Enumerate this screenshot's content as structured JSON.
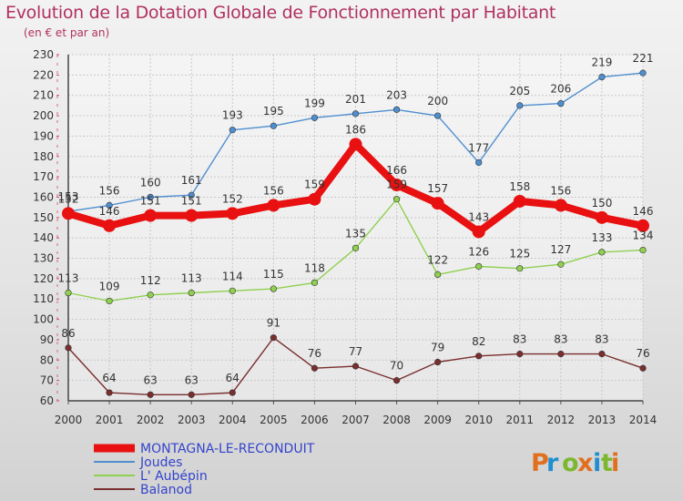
{
  "header": {
    "title": "Evolution de la Dotation Globale de Fonctionnement par Habitant",
    "subtitle": "(en € et par an)"
  },
  "logo": {
    "text": "Proxiti",
    "colors": [
      "#e07020",
      "#1f8fd0",
      "#7cb82f",
      "#e07020",
      "#1f8fd0",
      "#7cb82f",
      "#e07020"
    ]
  },
  "chart_data": {
    "type": "line",
    "title": "Evolution de la Dotation Globale de Fonctionnement par Habitant",
    "subtitle": "(en € et par an)",
    "xlabel": "",
    "ylabel": "",
    "x": [
      "2000",
      "2001",
      "2002",
      "2003",
      "2004",
      "2005",
      "2006",
      "2007",
      "2008",
      "2009",
      "2010",
      "2011",
      "2012",
      "2013",
      "2014"
    ],
    "ylim": [
      60,
      230
    ],
    "yticks": [
      60,
      70,
      80,
      90,
      100,
      110,
      120,
      130,
      140,
      150,
      160,
      170,
      180,
      190,
      200,
      210,
      220,
      230
    ],
    "grid": true,
    "legend_position": "bottom-left",
    "series": [
      {
        "name": "MONTAGNA-LE-RECONDUIT",
        "color": "#e81010",
        "emphasis": true,
        "values": [
          152,
          146,
          151,
          151,
          152,
          156,
          159,
          186,
          166,
          157,
          143,
          158,
          156,
          150,
          146
        ],
        "labels": [
          "152",
          "146",
          "151",
          "151",
          "152",
          "156",
          "159",
          "186",
          "166",
          "157",
          "143",
          "158",
          "156",
          "150",
          "146"
        ]
      },
      {
        "name": "Joudes",
        "color": "#4f8fd0",
        "values": [
          153,
          156,
          160,
          161,
          193,
          195,
          199,
          201,
          203,
          200,
          177,
          205,
          206,
          219,
          221
        ],
        "labels": [
          "153",
          "156",
          "160",
          "161",
          "193",
          "195",
          "199",
          "201",
          "203",
          "200",
          "177",
          "205",
          "206",
          "219",
          "221"
        ]
      },
      {
        "name": "L' Aubépin",
        "color": "#8fd050",
        "values": [
          113,
          109,
          112,
          113,
          114,
          115,
          118,
          135,
          159,
          122,
          126,
          125,
          127,
          133,
          134
        ],
        "labels": [
          "113",
          "109",
          "112",
          "113",
          "114",
          "115",
          "118",
          "135",
          "159",
          "122",
          "126",
          "125",
          "127",
          "133",
          "134"
        ]
      },
      {
        "name": "Balanod",
        "color": "#7a2e2e",
        "values": [
          86,
          64,
          63,
          63,
          64,
          91,
          76,
          77,
          70,
          79,
          82,
          83,
          83,
          83,
          76
        ],
        "labels": [
          "86",
          "64",
          "63",
          "63",
          "64",
          "91",
          "76",
          "77",
          "70",
          "79",
          "82",
          "83",
          "83",
          "83",
          "76"
        ]
      }
    ]
  }
}
